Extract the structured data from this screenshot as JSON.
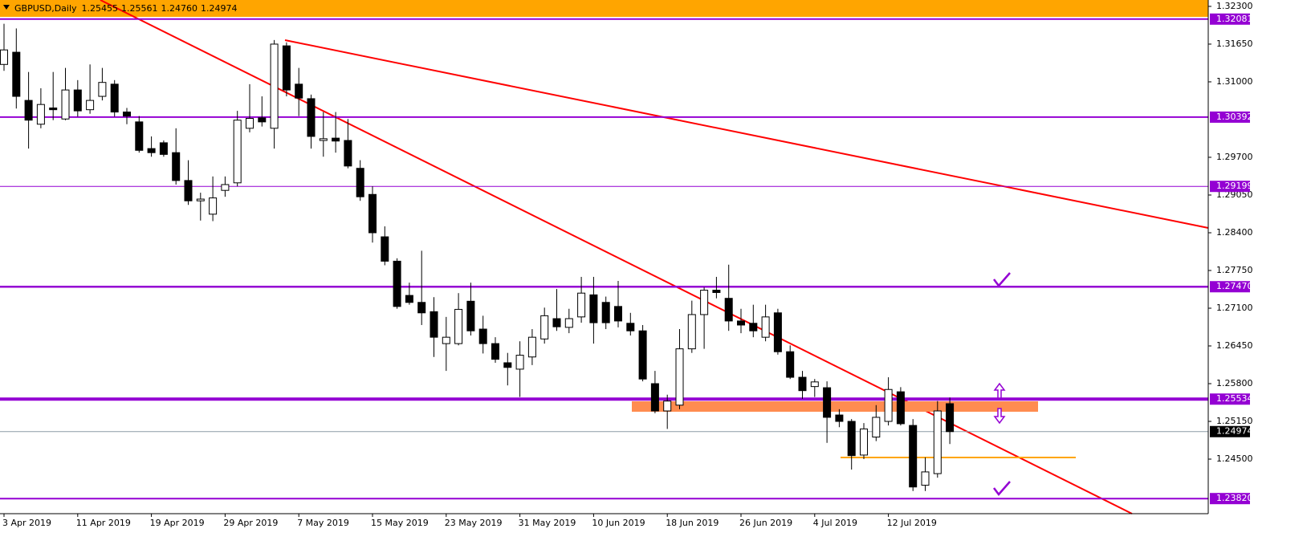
{
  "chart_data": {
    "type": "candlestick",
    "title": "GBPUSD,Daily",
    "header_quote": [
      1.25455,
      1.25561,
      {
        "value": 1.2476,
        "label": "1.24760"
      },
      1.24974
    ],
    "categories": [
      "3 Apr 2019",
      null,
      null,
      null,
      null,
      null,
      "11 Apr 2019",
      null,
      null,
      null,
      null,
      null,
      "19 Apr 2019",
      null,
      null,
      null,
      null,
      null,
      "29 Apr 2019",
      null,
      null,
      null,
      null,
      null,
      "7 May 2019",
      null,
      null,
      null,
      null,
      null,
      "15 May 2019",
      null,
      null,
      null,
      null,
      null,
      "23 May 2019",
      null,
      null,
      null,
      null,
      null,
      "31 May 2019",
      null,
      null,
      null,
      null,
      null,
      "10 Jun 2019",
      null,
      null,
      null,
      null,
      null,
      "18 Jun 2019",
      null,
      null,
      null,
      null,
      null,
      "26 Jun 2019",
      null,
      null,
      null,
      null,
      null,
      "4 Jul 2019",
      null,
      null,
      null,
      null,
      null,
      "12 Jul 2019",
      null,
      null,
      null,
      null,
      null
    ],
    "open": [
      1.313,
      1.3151,
      1.3068,
      1.3027,
      1.3055,
      1.3036,
      1.3086,
      1.3052,
      1.3075,
      1.3096,
      1.3048,
      1.3031,
      1.2985,
      1.2995,
      1.2978,
      1.293,
      1.2895,
      1.2872,
      1.2913,
      1.2926,
      1.302,
      1.3038,
      1.302,
      1.3162,
      1.3096,
      1.3071,
      1.2999,
      1.3003,
      1.2999,
      1.2951,
      1.2906,
      1.2833,
      1.2791,
      1.2732,
      1.272,
      1.2704,
      1.2649,
      1.2649,
      1.2722,
      1.2674,
      1.2649,
      1.2616,
      1.2605,
      1.2626,
      1.2657,
      1.2692,
      1.2677,
      1.2695,
      1.2733,
      1.272,
      1.2713,
      1.2684,
      1.2671,
      1.258,
      1.2533,
      1.2543,
      1.264,
      1.2699,
      1.2741,
      1.2727,
      1.2688,
      1.2684,
      1.266,
      1.2702,
      1.2635,
      1.2591,
      1.2575,
      1.2573,
      1.2526,
      1.2515,
      1.2457,
      1.2488,
      1.2515,
      1.2566,
      1.2508,
      1.2405,
      1.2425,
      1.25455
    ],
    "high": [
      1.32,
      1.3192,
      1.3117,
      1.3089,
      1.3117,
      1.3124,
      1.3103,
      1.313,
      1.3124,
      1.3103,
      1.3055,
      1.3041,
      1.3006,
      1.2999,
      1.302,
      1.2965,
      1.2909,
      1.2937,
      1.2937,
      1.305,
      1.3096,
      1.3075,
      1.3172,
      1.3168,
      1.3124,
      1.3078,
      1.3048,
      1.3048,
      1.3036,
      1.2965,
      1.292,
      1.2851,
      1.2796,
      1.2754,
      1.2809,
      1.2729,
      1.2695,
      1.2736,
      1.2754,
      1.2697,
      1.266,
      1.2633,
      1.2653,
      1.2674,
      1.2711,
      1.2743,
      1.2709,
      1.2764,
      1.2764,
      1.273,
      1.2757,
      1.2702,
      1.2681,
      1.2602,
      1.2561,
      1.2674,
      1.2723,
      1.2746,
      1.2764,
      1.2785,
      1.2709,
      1.2716,
      1.2716,
      1.2709,
      1.2646,
      1.2602,
      1.2588,
      1.2584,
      1.2536,
      1.2519,
      1.2512,
      1.2543,
      1.2591,
      1.2574,
      1.2519,
      1.2453,
      1.255,
      1.25561
    ],
    "low": [
      1.3119,
      1.3054,
      1.2985,
      1.302,
      1.3034,
      1.3034,
      1.304,
      1.3045,
      1.3068,
      1.304,
      1.3027,
      1.2978,
      1.2971,
      1.2971,
      1.2923,
      1.2888,
      1.2861,
      1.286,
      1.2902,
      1.292,
      1.3013,
      1.3023,
      1.2985,
      1.3075,
      1.3041,
      1.2985,
      1.2971,
      1.2978,
      1.2951,
      1.2895,
      1.2823,
      1.2784,
      1.2709,
      1.2716,
      1.2681,
      1.2626,
      1.2602,
      1.2646,
      1.2663,
      1.2632,
      1.2616,
      1.2577,
      1.2557,
      1.2612,
      1.2649,
      1.2671,
      1.2667,
      1.2685,
      1.2649,
      1.2674,
      1.2677,
      1.2663,
      1.2584,
      1.2529,
      1.2502,
      1.2536,
      1.2633,
      1.264,
      1.2727,
      1.2671,
      1.2667,
      1.266,
      1.2653,
      1.263,
      1.2588,
      1.2554,
      1.2557,
      1.2478,
      1.2505,
      1.2432,
      1.245,
      1.2481,
      1.2508,
      1.2508,
      1.2395,
      1.2395,
      1.2418,
      1.2476
    ],
    "close": [
      1.3155,
      1.3075,
      1.3034,
      1.3061,
      1.3052,
      1.3086,
      1.305,
      1.3068,
      1.3099,
      1.3048,
      1.3041,
      1.2982,
      1.2978,
      1.2975,
      1.293,
      1.2895,
      1.2898,
      1.29,
      1.2923,
      1.3034,
      1.3037,
      1.3031,
      1.3165,
      1.3086,
      1.3072,
      1.3006,
      1.3002,
      1.2998,
      1.2955,
      1.2902,
      1.284,
      1.2791,
      1.2713,
      1.272,
      1.2702,
      1.266,
      1.266,
      1.2708,
      1.2671,
      1.2649,
      1.2622,
      1.2608,
      1.2629,
      1.266,
      1.2697,
      1.2678,
      1.2692,
      1.2736,
      1.2685,
      1.2685,
      1.2688,
      1.2671,
      1.2588,
      1.2533,
      1.255,
      1.264,
      1.2699,
      1.2741,
      1.2737,
      1.2688,
      1.2681,
      1.2671,
      1.2695,
      1.2635,
      1.2591,
      1.2568,
      1.2583,
      1.2522,
      1.2515,
      1.2456,
      1.2502,
      1.2522,
      1.257,
      1.2511,
      1.2402,
      1.2428,
      1.2533,
      1.24974
    ],
    "bull_color": "#ffffff",
    "bear_color": "#000000",
    "ylim": [
      1.2356,
      1.3241
    ],
    "yticks": [
      {
        "value": 1.323,
        "label": "1.32300"
      },
      {
        "value": 1.3165,
        "label": "1.31650"
      },
      {
        "value": 1.31,
        "label": "1.31000"
      },
      {
        "value": 1.297,
        "label": "1.29700"
      },
      {
        "value": 1.2905,
        "label": "1.29050"
      },
      {
        "value": 1.284,
        "label": "1.28400"
      },
      {
        "value": 1.2775,
        "label": "1.27750"
      },
      {
        "value": 1.271,
        "label": "1.27100"
      },
      {
        "value": 1.2645,
        "label": "1.26450"
      },
      {
        "value": 1.258,
        "label": "1.25800"
      },
      {
        "value": 1.2515,
        "label": "1.25150"
      },
      {
        "value": 1.245,
        "label": "1.24500"
      }
    ],
    "levels": [
      {
        "value": 1.32081,
        "label": "1.32081",
        "width": 2
      },
      {
        "value": 1.30392,
        "label": "1.30392",
        "width": 2
      },
      {
        "value": 1.29199,
        "label": "1.29199",
        "width": 1
      },
      {
        "value": 1.2747,
        "label": "1.27470",
        "width": 2.5
      },
      {
        "value": 1.25534,
        "label": "1.25534",
        "width": 4
      },
      {
        "value": 1.2382,
        "label": "1.23820",
        "width": 2
      }
    ],
    "level_color": "#9400d3",
    "current_price": {
      "value": 1.24974,
      "label": "1.24974"
    },
    "current_price_color": "#8c9ba5"
  }
}
